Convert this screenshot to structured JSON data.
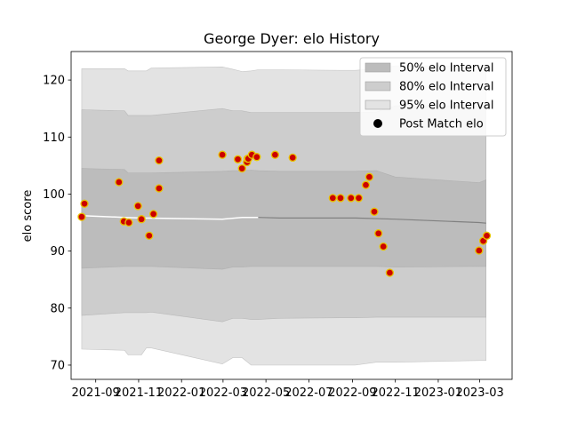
{
  "chart_data": {
    "type": "line",
    "title": "George Dyer: elo History",
    "xlabel": "",
    "ylabel": "elo score",
    "xlim": [
      "2021-07-28",
      "2023-04-16"
    ],
    "ylim": [
      67.5,
      125
    ],
    "x_ticks": [
      "2021-09",
      "2021-11",
      "2022-01",
      "2022-03",
      "2022-05",
      "2022-07",
      "2022-09",
      "2022-11",
      "2023-01",
      "2023-03"
    ],
    "y_ticks": [
      70,
      80,
      90,
      100,
      110,
      120
    ],
    "grid": false,
    "legend_position": "top-right",
    "legend": [
      {
        "label": "50% elo Interval",
        "swatch": "band50"
      },
      {
        "label": "80% elo Interval",
        "swatch": "band80"
      },
      {
        "label": "95% elo Interval",
        "swatch": "band95"
      },
      {
        "label": "Post Match elo",
        "swatch": "marker"
      }
    ],
    "colors": {
      "band95": "#e3e3e3",
      "band80": "#cdcdcd",
      "band50": "#bcbcbc",
      "band_edge": "#9e9e9e",
      "mean_line_early": "#ffffff",
      "mean_line_late": "#808080",
      "marker_fill": "#cc0000",
      "marker_edge": "#e8c200"
    },
    "mean_line": {
      "x": [
        "2021-08-12",
        "2021-10-12",
        "2021-11-05",
        "2022-02-28",
        "2022-03-28",
        "2022-04-20",
        "2022-05-20",
        "2022-09-05",
        "2022-11-01",
        "2023-02-28",
        "2023-03-10"
      ],
      "y": [
        96.2,
        95.9,
        95.8,
        95.6,
        95.9,
        95.9,
        95.8,
        95.8,
        95.6,
        95.0,
        94.9
      ]
    },
    "series": [
      {
        "band": "95",
        "x": [
          "2021-08-12",
          "2021-10-12",
          "2021-10-17",
          "2021-11-01",
          "2021-11-05",
          "2021-11-12",
          "2021-11-19",
          "2022-02-28",
          "2022-03-15",
          "2022-03-28",
          "2022-04-10",
          "2022-04-20",
          "2022-05-20",
          "2022-08-15",
          "2022-09-05",
          "2022-10-05",
          "2022-11-01",
          "2023-02-28",
          "2023-03-10"
        ],
        "upper": [
          122.0,
          122.0,
          121.6,
          121.6,
          121.6,
          121.6,
          122.1,
          122.3,
          121.9,
          121.5,
          121.6,
          121.8,
          121.8,
          121.7,
          121.7,
          122.0,
          122.5,
          122.5,
          122.0
        ],
        "lower": [
          72.8,
          72.6,
          71.8,
          71.8,
          71.8,
          73.0,
          73.0,
          70.2,
          71.3,
          71.3,
          70.0,
          70.0,
          70.0,
          70.0,
          70.0,
          70.5,
          70.5,
          70.8,
          70.8
        ]
      },
      {
        "band": "80",
        "x": [
          "2021-08-12",
          "2021-10-12",
          "2021-10-17",
          "2021-11-01",
          "2021-11-05",
          "2021-11-12",
          "2021-11-19",
          "2022-02-28",
          "2022-03-15",
          "2022-03-28",
          "2022-04-10",
          "2022-04-20",
          "2022-05-20",
          "2022-08-15",
          "2022-09-05",
          "2022-10-05",
          "2022-11-01",
          "2023-02-28",
          "2023-03-10"
        ],
        "upper": [
          114.8,
          114.6,
          113.8,
          113.8,
          113.8,
          113.8,
          113.8,
          115.0,
          114.6,
          114.6,
          114.3,
          114.3,
          114.3,
          114.3,
          114.3,
          114.4,
          115.5,
          115.5,
          115.5
        ],
        "lower": [
          78.7,
          79.2,
          79.2,
          79.2,
          79.2,
          79.2,
          79.3,
          77.6,
          78.2,
          78.2,
          78.0,
          78.0,
          78.2,
          78.3,
          78.3,
          78.4,
          78.4,
          78.4,
          78.4
        ]
      },
      {
        "band": "50",
        "x": [
          "2021-08-12",
          "2021-10-12",
          "2021-10-17",
          "2021-11-01",
          "2021-11-05",
          "2021-11-12",
          "2021-11-19",
          "2022-02-28",
          "2022-03-15",
          "2022-03-28",
          "2022-04-10",
          "2022-04-20",
          "2022-05-20",
          "2022-08-15",
          "2022-09-05",
          "2022-10-05",
          "2022-11-01",
          "2023-02-28",
          "2023-03-10"
        ],
        "upper": [
          104.5,
          104.3,
          103.7,
          103.7,
          103.7,
          103.7,
          103.7,
          104.0,
          104.1,
          104.1,
          104.2,
          104.1,
          104.0,
          104.0,
          104.0,
          104.1,
          103.0,
          102.0,
          102.5
        ],
        "lower": [
          87.0,
          87.3,
          87.3,
          87.3,
          87.3,
          87.3,
          87.3,
          86.8,
          87.2,
          87.2,
          87.3,
          87.3,
          87.3,
          87.3,
          87.3,
          87.3,
          87.2,
          87.3,
          87.3
        ]
      },
      {
        "name": "Post Match elo",
        "type": "scatter",
        "x": [
          "2021-08-12",
          "2021-08-16",
          "2021-10-04",
          "2021-10-11",
          "2021-10-18",
          "2021-10-31",
          "2021-11-05",
          "2021-11-16",
          "2021-11-22",
          "2021-11-30",
          "2021-11-30",
          "2022-02-28",
          "2022-03-22",
          "2022-03-28",
          "2022-04-04",
          "2022-04-05",
          "2022-04-06",
          "2022-04-11",
          "2022-04-18",
          "2022-05-14",
          "2022-06-08",
          "2022-08-04",
          "2022-08-15",
          "2022-08-30",
          "2022-09-10",
          "2022-09-20",
          "2022-09-25",
          "2022-10-02",
          "2022-10-08",
          "2022-10-15",
          "2022-10-24",
          "2023-02-28",
          "2023-03-06",
          "2023-03-11"
        ],
        "y": [
          96.0,
          98.3,
          102.1,
          95.2,
          95.0,
          97.9,
          95.6,
          92.7,
          96.5,
          101.0,
          105.9,
          106.9,
          106.1,
          104.5,
          105.6,
          106.2,
          106.2,
          106.9,
          106.5,
          106.9,
          106.4,
          99.3,
          99.3,
          99.3,
          99.3,
          101.6,
          103.0,
          96.9,
          93.1,
          90.8,
          86.2,
          90.1,
          91.8,
          92.7
        ]
      }
    ]
  }
}
